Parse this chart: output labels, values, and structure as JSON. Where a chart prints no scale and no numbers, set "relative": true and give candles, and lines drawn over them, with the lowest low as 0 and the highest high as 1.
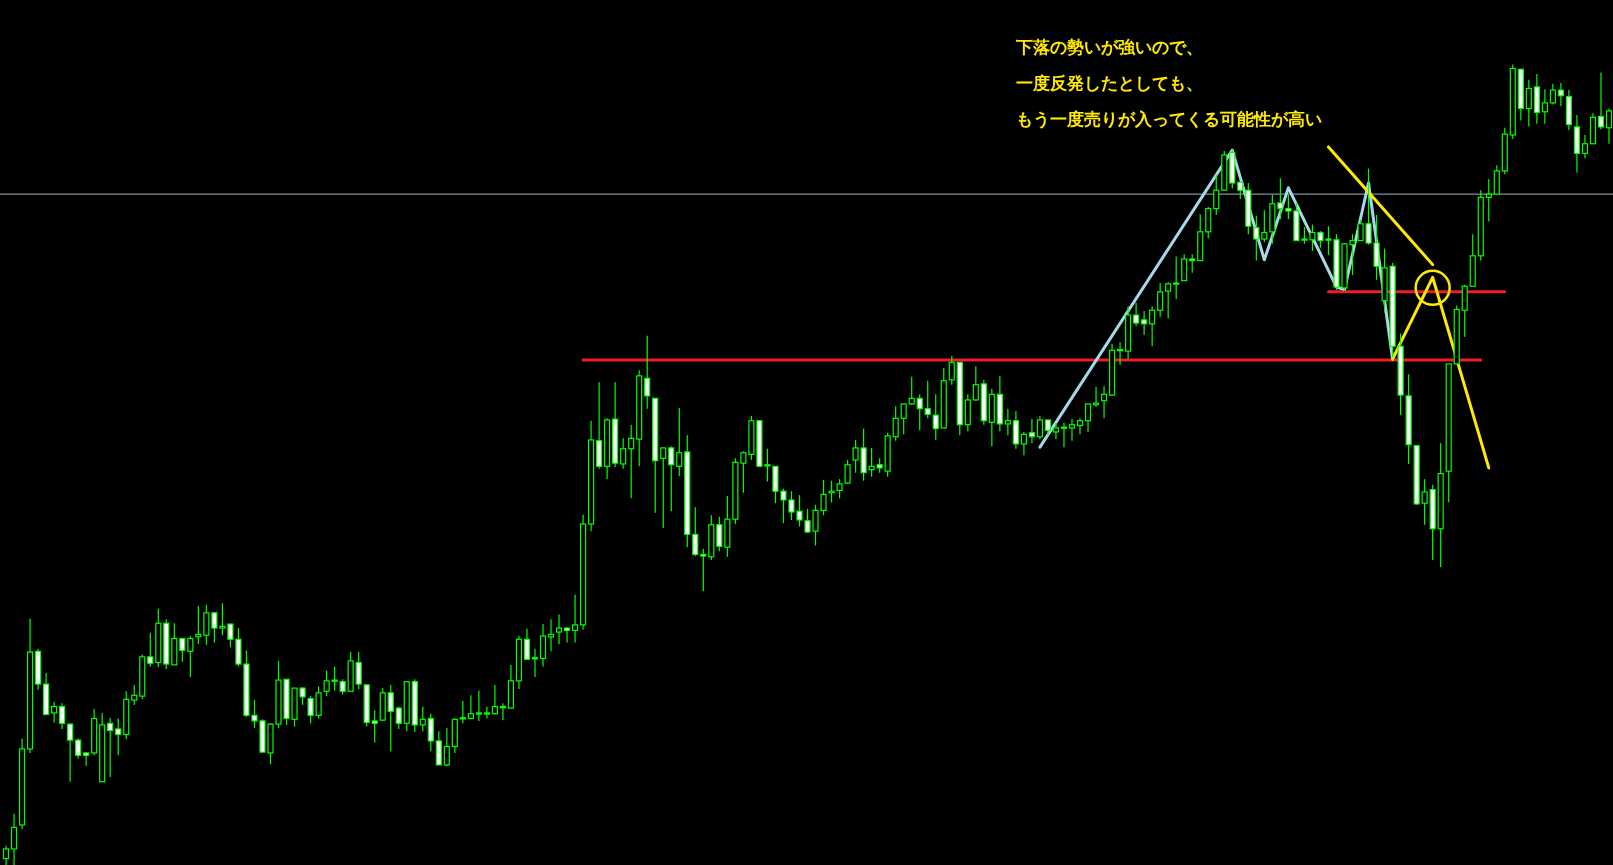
{
  "chart_data": {
    "type": "candlestick",
    "relative": true,
    "categories": [
      null,
      null,
      null,
      null,
      null,
      null,
      null,
      null,
      null,
      null,
      null,
      null,
      null,
      null,
      null,
      null,
      null,
      null,
      null,
      null,
      null,
      null,
      null,
      null,
      null,
      null,
      null,
      null,
      null,
      null,
      null,
      null,
      null,
      null,
      null,
      null,
      null,
      null,
      null,
      null,
      null,
      null,
      null,
      null,
      null,
      null,
      null,
      null,
      null,
      null,
      null,
      null,
      null,
      null,
      null,
      null,
      null,
      null,
      null,
      null,
      null,
      null,
      null,
      null,
      null,
      null,
      null,
      null,
      null,
      null,
      null,
      null,
      null,
      null,
      null,
      null,
      null,
      null,
      null,
      null,
      null,
      null,
      null,
      null,
      null,
      null,
      null,
      null,
      null,
      null,
      null,
      null,
      null,
      null,
      null,
      null,
      null,
      null,
      null,
      null,
      null,
      null,
      null,
      null,
      null,
      null,
      null,
      null,
      null,
      null,
      null,
      null,
      null,
      null,
      null,
      null,
      null,
      null,
      null,
      null,
      null,
      null,
      null,
      null,
      null,
      null,
      null,
      null,
      null,
      null,
      null,
      null,
      null,
      null,
      null,
      null,
      null,
      null,
      null,
      null,
      null,
      null,
      null,
      null,
      null,
      null,
      null,
      null,
      null,
      null,
      null,
      null,
      null,
      null,
      null,
      null,
      null,
      null,
      null,
      null,
      null,
      null,
      null,
      null,
      null,
      null,
      null,
      null,
      null,
      null,
      null,
      null,
      null,
      null,
      null,
      null,
      null,
      null,
      null,
      null,
      null,
      null,
      null,
      null,
      null,
      null,
      null,
      null,
      null,
      null,
      null,
      null,
      null,
      null,
      null,
      null,
      null,
      null,
      null,
      null,
      null
    ],
    "ohlc": [
      [
        0.008,
        0.024,
        0,
        0.02
      ],
      [
        0.02,
        0.064,
        0,
        0.047
      ],
      [
        0.05,
        0.158,
        0.045,
        0.145
      ],
      [
        0.145,
        0.308,
        0.14,
        0.266
      ],
      [
        0.267,
        0.27,
        0.219,
        0.226
      ],
      [
        0.226,
        0.24,
        0.188,
        0.188
      ],
      [
        0.19,
        0.204,
        0.178,
        0.198
      ],
      [
        0.198,
        0.202,
        0.17,
        0.177
      ],
      [
        0.176,
        0.177,
        0.104,
        0.156
      ],
      [
        0.156,
        0.158,
        0.133,
        0.137
      ],
      [
        0.14,
        0.141,
        0.124,
        0.137
      ],
      [
        0.14,
        0.195,
        0.137,
        0.183
      ],
      [
        0.104,
        0.19,
        0.104,
        0.175
      ],
      [
        0.177,
        0.184,
        0.11,
        0.168
      ],
      [
        0.17,
        0.183,
        0.137,
        0.163
      ],
      [
        0.163,
        0.217,
        0.157,
        0.207
      ],
      [
        0.206,
        0.225,
        0.2,
        0.212
      ],
      [
        0.211,
        0.263,
        0.207,
        0.26
      ],
      [
        0.26,
        0.29,
        0.248,
        0.252
      ],
      [
        0.253,
        0.32,
        0.247,
        0.302
      ],
      [
        0.302,
        0.307,
        0.245,
        0.251
      ],
      [
        0.25,
        0.302,
        0.25,
        0.283
      ],
      [
        0.283,
        0.283,
        0.254,
        0.268
      ],
      [
        0.267,
        0.286,
        0.235,
        0.283
      ],
      [
        0.285,
        0.324,
        0.276,
        0.288
      ],
      [
        0.287,
        0.325,
        0.275,
        0.315
      ],
      [
        0.315,
        0.316,
        0.278,
        0.296
      ],
      [
        0.296,
        0.327,
        0.287,
        0.298
      ],
      [
        0.301,
        0.301,
        0.272,
        0.282
      ],
      [
        0.282,
        0.296,
        0.248,
        0.251
      ],
      [
        0.251,
        0.268,
        0.185,
        0.187
      ],
      [
        0.187,
        0.206,
        0.171,
        0.18
      ],
      [
        0.18,
        0.182,
        0.141,
        0.141
      ],
      [
        0.14,
        0.177,
        0.126,
        0.176
      ],
      [
        0.176,
        0.255,
        0.171,
        0.231
      ],
      [
        0.232,
        0.232,
        0.175,
        0.183
      ],
      [
        0.182,
        0.221,
        0.173,
        0.221
      ],
      [
        0.221,
        0.222,
        0.2,
        0.21
      ],
      [
        0.208,
        0.211,
        0.177,
        0.187
      ],
      [
        0.187,
        0.223,
        0.183,
        0.215
      ],
      [
        0.217,
        0.243,
        0.211,
        0.23
      ],
      [
        0.23,
        0.248,
        0.218,
        0.231
      ],
      [
        0.229,
        0.232,
        0.213,
        0.217
      ],
      [
        0.217,
        0.266,
        0.217,
        0.255
      ],
      [
        0.253,
        0.266,
        0.22,
        0.226
      ],
      [
        0.225,
        0.225,
        0.173,
        0.178
      ],
      [
        0.18,
        0.193,
        0.153,
        0.177
      ],
      [
        0.181,
        0.221,
        0.18,
        0.215
      ],
      [
        0.215,
        0.225,
        0.142,
        0.192
      ],
      [
        0.196,
        0.198,
        0.17,
        0.177
      ],
      [
        0.177,
        0.229,
        0.167,
        0.229
      ],
      [
        0.229,
        0.232,
        0.166,
        0.175
      ],
      [
        0.175,
        0.198,
        0.167,
        0.182
      ],
      [
        0.183,
        0.189,
        0.142,
        0.155
      ],
      [
        0.155,
        0.167,
        0.125,
        0.125
      ],
      [
        0.125,
        0.171,
        0.123,
        0.148
      ],
      [
        0.148,
        0.183,
        0.14,
        0.182
      ],
      [
        0.183,
        0.205,
        0.177,
        0.184
      ],
      [
        0.183,
        0.212,
        0.182,
        0.189
      ],
      [
        0.189,
        0.218,
        0.18,
        0.19
      ],
      [
        0.189,
        0.198,
        0.183,
        0.19
      ],
      [
        0.189,
        0.225,
        0.188,
        0.198
      ],
      [
        0.197,
        0.202,
        0.181,
        0.198
      ],
      [
        0.196,
        0.25,
        0.196,
        0.23
      ],
      [
        0.23,
        0.286,
        0.22,
        0.282
      ],
      [
        0.282,
        0.295,
        0.257,
        0.257
      ],
      [
        0.258,
        0.27,
        0.235,
        0.259
      ],
      [
        0.258,
        0.301,
        0.248,
        0.286
      ],
      [
        0.285,
        0.307,
        0.267,
        0.288
      ],
      [
        0.291,
        0.313,
        0.276,
        0.296
      ],
      [
        0.296,
        0.297,
        0.278,
        0.293
      ],
      [
        0.293,
        0.338,
        0.278,
        0.3
      ],
      [
        0.3,
        0.438,
        0.294,
        0.426
      ],
      [
        0.426,
        0.555,
        0.417,
        0.531
      ],
      [
        0.53,
        0.603,
        0.495,
        0.498
      ],
      [
        0.498,
        0.558,
        0.482,
        0.556
      ],
      [
        0.557,
        0.603,
        0.497,
        0.502
      ],
      [
        0.501,
        0.533,
        0.495,
        0.52
      ],
      [
        0.52,
        0.55,
        0.458,
        0.533
      ],
      [
        0.532,
        0.618,
        0.498,
        0.611
      ],
      [
        0.608,
        0.661,
        0.57,
        0.586
      ],
      [
        0.583,
        0.583,
        0.44,
        0.505
      ],
      [
        0.508,
        0.522,
        0.421,
        0.521
      ],
      [
        0.521,
        0.523,
        0.442,
        0.5
      ],
      [
        0.498,
        0.571,
        0.486,
        0.515
      ],
      [
        0.516,
        0.537,
        0.397,
        0.413
      ],
      [
        0.413,
        0.447,
        0.386,
        0.388
      ],
      [
        0.388,
        0.395,
        0.342,
        0.386
      ],
      [
        0.385,
        0.437,
        0.381,
        0.425
      ],
      [
        0.425,
        0.435,
        0.392,
        0.398
      ],
      [
        0.397,
        0.461,
        0.385,
        0.432
      ],
      [
        0.432,
        0.508,
        0.426,
        0.503
      ],
      [
        0.502,
        0.517,
        0.465,
        0.515
      ],
      [
        0.513,
        0.561,
        0.506,
        0.555
      ],
      [
        0.555,
        0.555,
        0.498,
        0.498
      ],
      [
        0.499,
        0.52,
        0.479,
        0.5
      ],
      [
        0.498,
        0.498,
        0.452,
        0.467
      ],
      [
        0.467,
        0.47,
        0.427,
        0.456
      ],
      [
        0.456,
        0.467,
        0.431,
        0.441
      ],
      [
        0.442,
        0.462,
        0.423,
        0.431
      ],
      [
        0.43,
        0.445,
        0.415,
        0.416
      ],
      [
        0.417,
        0.45,
        0.399,
        0.443
      ],
      [
        0.443,
        0.481,
        0.437,
        0.463
      ],
      [
        0.465,
        0.48,
        0.453,
        0.467
      ],
      [
        0.468,
        0.482,
        0.458,
        0.476
      ],
      [
        0.477,
        0.506,
        0.476,
        0.5
      ],
      [
        0.506,
        0.531,
        0.49,
        0.521
      ],
      [
        0.521,
        0.545,
        0.48,
        0.49
      ],
      [
        0.494,
        0.521,
        0.485,
        0.498
      ],
      [
        0.5,
        0.508,
        0.49,
        0.496
      ],
      [
        0.492,
        0.54,
        0.485,
        0.536
      ],
      [
        0.535,
        0.573,
        0.53,
        0.558
      ],
      [
        0.558,
        0.576,
        0.538,
        0.576
      ],
      [
        0.576,
        0.61,
        0.575,
        0.583
      ],
      [
        0.583,
        0.588,
        0.543,
        0.57
      ],
      [
        0.57,
        0.605,
        0.558,
        0.563
      ],
      [
        0.562,
        0.588,
        0.531,
        0.545
      ],
      [
        0.546,
        0.621,
        0.546,
        0.605
      ],
      [
        0.606,
        0.636,
        0.6,
        0.628
      ],
      [
        0.628,
        0.628,
        0.537,
        0.55
      ],
      [
        0.55,
        0.588,
        0.542,
        0.581
      ],
      [
        0.581,
        0.623,
        0.58,
        0.6
      ],
      [
        0.601,
        0.606,
        0.55,
        0.555
      ],
      [
        0.553,
        0.595,
        0.523,
        0.588
      ],
      [
        0.588,
        0.611,
        0.542,
        0.551
      ],
      [
        0.551,
        0.57,
        0.537,
        0.555
      ],
      [
        0.555,
        0.567,
        0.52,
        0.526
      ],
      [
        0.526,
        0.541,
        0.512,
        0.538
      ],
      [
        0.54,
        0.557,
        0.527,
        0.535
      ],
      [
        0.535,
        0.561,
        0.532,
        0.556
      ],
      [
        0.556,
        0.556,
        0.537,
        0.543
      ],
      [
        0.541,
        0.552,
        0.532,
        0.546
      ],
      [
        0.546,
        0.552,
        0.522,
        0.547
      ],
      [
        0.546,
        0.557,
        0.53,
        0.55
      ],
      [
        0.549,
        0.558,
        0.538,
        0.555
      ],
      [
        0.555,
        0.576,
        0.541,
        0.576
      ],
      [
        0.575,
        0.597,
        0.572,
        0.577
      ],
      [
        0.58,
        0.598,
        0.558,
        0.588
      ],
      [
        0.587,
        0.651,
        0.586,
        0.643
      ],
      [
        0.643,
        0.653,
        0.625,
        0.644
      ],
      [
        0.642,
        0.698,
        0.632,
        0.687
      ],
      [
        0.687,
        0.702,
        0.673,
        0.677
      ],
      [
        0.681,
        0.692,
        0.662,
        0.676
      ],
      [
        0.676,
        0.698,
        0.648,
        0.693
      ],
      [
        0.693,
        0.727,
        0.685,
        0.716
      ],
      [
        0.717,
        0.728,
        0.683,
        0.726
      ],
      [
        0.726,
        0.76,
        0.707,
        0.727
      ],
      [
        0.73,
        0.763,
        0.73,
        0.757
      ],
      [
        0.757,
        0.763,
        0.74,
        0.755
      ],
      [
        0.755,
        0.813,
        0.755,
        0.791
      ],
      [
        0.791,
        0.822,
        0.783,
        0.82
      ],
      [
        0.82,
        0.862,
        0.812,
        0.843
      ],
      [
        0.843,
        0.892,
        0.843,
        0.887
      ],
      [
        0.89,
        0.893,
        0.845,
        0.852
      ],
      [
        0.853,
        0.853,
        0.832,
        0.843
      ],
      [
        0.843,
        0.852,
        0.788,
        0.798
      ],
      [
        0.796,
        0.811,
        0.755,
        0.782
      ],
      [
        0.782,
        0.818,
        0.778,
        0.79
      ],
      [
        0.791,
        0.837,
        0.776,
        0.826
      ],
      [
        0.827,
        0.858,
        0.807,
        0.82
      ],
      [
        0.82,
        0.837,
        0.807,
        0.817
      ],
      [
        0.817,
        0.827,
        0.78,
        0.78
      ],
      [
        0.781,
        0.797,
        0.776,
        0.782
      ],
      [
        0.781,
        0.8,
        0.767,
        0.79
      ],
      [
        0.79,
        0.792,
        0.771,
        0.78
      ],
      [
        0.781,
        0.798,
        0.762,
        0.782
      ],
      [
        0.781,
        0.788,
        0.718,
        0.722
      ],
      [
        0.721,
        0.777,
        0.717,
        0.776
      ],
      [
        0.775,
        0.788,
        0.737,
        0.78
      ],
      [
        0.78,
        0.806,
        0.78,
        0.801
      ],
      [
        0.801,
        0.87,
        0.775,
        0.777
      ],
      [
        0.777,
        0.812,
        0.731,
        0.748
      ],
      [
        0.705,
        0.77,
        0.69,
        0.746
      ],
      [
        0.748,
        0.752,
        0.634,
        0.648
      ],
      [
        0.648,
        0.664,
        0.562,
        0.587
      ],
      [
        0.586,
        0.613,
        0.501,
        0.525
      ],
      [
        0.524,
        0.524,
        0.45,
        0.451
      ],
      [
        0.452,
        0.482,
        0.425,
        0.466
      ],
      [
        0.469,
        0.475,
        0.381,
        0.42
      ],
      [
        0.42,
        0.527,
        0.372,
        0.489
      ],
      [
        0.492,
        0.626,
        0.453,
        0.626
      ],
      [
        0.626,
        0.699,
        0.626,
        0.694
      ],
      [
        0.693,
        0.725,
        0.66,
        0.723
      ],
      [
        0.723,
        0.788,
        0.723,
        0.761
      ],
      [
        0.761,
        0.843,
        0.755,
        0.834
      ],
      [
        0.834,
        0.857,
        0.804,
        0.838
      ],
      [
        0.838,
        0.874,
        0.838,
        0.867
      ],
      [
        0.867,
        0.921,
        0.863,
        0.913
      ],
      [
        0.912,
        1.0,
        0.907,
        0.995
      ],
      [
        0.994,
        0.995,
        0.93,
        0.945
      ],
      [
        0.945,
        0.981,
        0.923,
        0.97
      ],
      [
        0.972,
        0.988,
        0.926,
        0.94
      ],
      [
        0.941,
        0.969,
        0.926,
        0.952
      ],
      [
        0.952,
        0.976,
        0.95,
        0.968
      ],
      [
        0.968,
        0.977,
        0.948,
        0.961
      ],
      [
        0.96,
        0.968,
        0.918,
        0.925
      ],
      [
        0.922,
        0.937,
        0.865,
        0.889
      ],
      [
        0.889,
        0.912,
        0.883,
        0.901
      ],
      [
        0.901,
        0.939,
        0.901,
        0.934
      ],
      [
        0.935,
        0.99,
        0.919,
        0.922
      ],
      [
        0.921,
        0.945,
        0.901,
        0.942
      ]
    ],
    "ref_lines": [
      {
        "axis": "y",
        "value": 0.838,
        "color": "#7f8c99"
      }
    ],
    "series": [
      {
        "type": "line",
        "color": "#ee1c25",
        "values": [
          null,
          null,
          null,
          null,
          null,
          null,
          null,
          null,
          null,
          null,
          null,
          null,
          null,
          null,
          null,
          null,
          null,
          null,
          null,
          null,
          null,
          null,
          null,
          null,
          null,
          null,
          null,
          null,
          null,
          null,
          null,
          null,
          null,
          null,
          null,
          null,
          null,
          null,
          null,
          null,
          null,
          null,
          null,
          null,
          null,
          null,
          null,
          null,
          null,
          null,
          null,
          null,
          null,
          null,
          null,
          null,
          null,
          null,
          null,
          null,
          null,
          null,
          null,
          null,
          null,
          null,
          null,
          null,
          null,
          null,
          null,
          null,
          0.631,
          null,
          null,
          null,
          null,
          null,
          null,
          null,
          null,
          null,
          null,
          null,
          null,
          null,
          null,
          null,
          null,
          null,
          null,
          null,
          null,
          null,
          null,
          null,
          null,
          null,
          null,
          null,
          null,
          null,
          null,
          null,
          null,
          null,
          null,
          null,
          null,
          null,
          null,
          null,
          null,
          null,
          null,
          null,
          null,
          null,
          null,
          null,
          null,
          null,
          null,
          null,
          null,
          null,
          null,
          null,
          null,
          null,
          null,
          null,
          null,
          null,
          null,
          null,
          null,
          null,
          null,
          null,
          null,
          null,
          null,
          null,
          null,
          null,
          null,
          null,
          null,
          null,
          null,
          null,
          null,
          null,
          null,
          null,
          null,
          null,
          null,
          null,
          null,
          null,
          null,
          null,
          null,
          null,
          null,
          null,
          null,
          null,
          null,
          null,
          null,
          null,
          null,
          null,
          null,
          null,
          null,
          null,
          null,
          null,
          null,
          null,
          0.631,
          null,
          null,
          null,
          null,
          null,
          null,
          null,
          null,
          null,
          null,
          null,
          null,
          null,
          null,
          null,
          null
        ]
      },
      {
        "type": "line",
        "color": "#ee1c25",
        "values": [
          null,
          null,
          null,
          null,
          null,
          null,
          null,
          null,
          null,
          null,
          null,
          null,
          null,
          null,
          null,
          null,
          null,
          null,
          null,
          null,
          null,
          null,
          null,
          null,
          null,
          null,
          null,
          null,
          null,
          null,
          null,
          null,
          null,
          null,
          null,
          null,
          null,
          null,
          null,
          null,
          null,
          null,
          null,
          null,
          null,
          null,
          null,
          null,
          null,
          null,
          null,
          null,
          null,
          null,
          null,
          null,
          null,
          null,
          null,
          null,
          null,
          null,
          null,
          null,
          null,
          null,
          null,
          null,
          null,
          null,
          null,
          null,
          null,
          null,
          null,
          null,
          null,
          null,
          null,
          null,
          null,
          null,
          null,
          null,
          null,
          null,
          null,
          null,
          null,
          null,
          null,
          null,
          null,
          null,
          null,
          null,
          null,
          null,
          null,
          null,
          null,
          null,
          null,
          null,
          null,
          null,
          null,
          null,
          null,
          null,
          null,
          null,
          null,
          null,
          null,
          null,
          null,
          null,
          null,
          null,
          null,
          null,
          null,
          null,
          null,
          null,
          null,
          null,
          null,
          null,
          null,
          null,
          null,
          null,
          null,
          null,
          null,
          null,
          null,
          null,
          null,
          null,
          null,
          null,
          null,
          null,
          null,
          null,
          null,
          null,
          null,
          null,
          null,
          null,
          null,
          null,
          null,
          null,
          null,
          null,
          null,
          null,
          null,
          null,
          null,
          0.716,
          null,
          null,
          null,
          null,
          null,
          null,
          null,
          null,
          null,
          null,
          null,
          null,
          null,
          null,
          null,
          null,
          null,
          null,
          null,
          null,
          null,
          0.716,
          null,
          null,
          null,
          null,
          null,
          null,
          null,
          null,
          null,
          null,
          null,
          null,
          null
        ]
      },
      {
        "type": "line",
        "color": "#a6d8ea",
        "values": [
          null,
          null,
          null,
          null,
          null,
          null,
          null,
          null,
          null,
          null,
          null,
          null,
          null,
          null,
          null,
          null,
          null,
          null,
          null,
          null,
          null,
          null,
          null,
          null,
          null,
          null,
          null,
          null,
          null,
          null,
          null,
          null,
          null,
          null,
          null,
          null,
          null,
          null,
          null,
          null,
          null,
          null,
          null,
          null,
          null,
          null,
          null,
          null,
          null,
          null,
          null,
          null,
          null,
          null,
          null,
          null,
          null,
          null,
          null,
          null,
          null,
          null,
          null,
          null,
          null,
          null,
          null,
          null,
          null,
          null,
          null,
          null,
          null,
          null,
          null,
          null,
          null,
          null,
          null,
          null,
          null,
          null,
          null,
          null,
          null,
          null,
          null,
          null,
          null,
          null,
          null,
          null,
          null,
          null,
          null,
          null,
          null,
          null,
          null,
          null,
          null,
          null,
          null,
          null,
          null,
          null,
          null,
          null,
          null,
          null,
          null,
          null,
          null,
          null,
          null,
          null,
          null,
          null,
          null,
          null,
          null,
          null,
          null,
          null,
          null,
          null,
          null,
          null,
          null,
          0.522,
          null,
          null,
          null,
          null,
          null,
          null,
          null,
          null,
          null,
          null,
          null,
          null,
          null,
          null,
          null,
          null,
          null,
          null,
          null,
          null,
          null,
          null,
          null,
          0.893,
          null,
          null,
          null,
          0.756,
          null,
          null,
          0.846,
          null,
          null,
          null,
          null,
          null,
          0.722,
          0.719,
          null,
          null,
          0.852,
          null,
          null,
          0.632,
          null,
          null,
          null,
          null,
          null,
          null,
          null,
          null,
          null,
          null,
          null,
          null,
          null,
          null,
          null,
          null,
          null,
          null,
          null,
          null,
          null,
          null,
          null,
          null,
          null,
          null,
          null
        ]
      },
      {
        "type": "line",
        "color": "#ffea00",
        "values": [
          null,
          null,
          null,
          null,
          null,
          null,
          null,
          null,
          null,
          null,
          null,
          null,
          null,
          null,
          null,
          null,
          null,
          null,
          null,
          null,
          null,
          null,
          null,
          null,
          null,
          null,
          null,
          null,
          null,
          null,
          null,
          null,
          null,
          null,
          null,
          null,
          null,
          null,
          null,
          null,
          null,
          null,
          null,
          null,
          null,
          null,
          null,
          null,
          null,
          null,
          null,
          null,
          null,
          null,
          null,
          null,
          null,
          null,
          null,
          null,
          null,
          null,
          null,
          null,
          null,
          null,
          null,
          null,
          null,
          null,
          null,
          null,
          null,
          null,
          null,
          null,
          null,
          null,
          null,
          null,
          null,
          null,
          null,
          null,
          null,
          null,
          null,
          null,
          null,
          null,
          null,
          null,
          null,
          null,
          null,
          null,
          null,
          null,
          null,
          null,
          null,
          null,
          null,
          null,
          null,
          null,
          null,
          null,
          null,
          null,
          null,
          null,
          null,
          null,
          null,
          null,
          null,
          null,
          null,
          null,
          null,
          null,
          null,
          null,
          null,
          null,
          null,
          null,
          null,
          null,
          null,
          null,
          null,
          null,
          null,
          null,
          null,
          null,
          null,
          null,
          null,
          null,
          null,
          null,
          null,
          null,
          null,
          null,
          null,
          null,
          null,
          null,
          null,
          null,
          null,
          null,
          null,
          null,
          null,
          null,
          null,
          null,
          null,
          null,
          null,
          0.897,
          null,
          null,
          null,
          null,
          null,
          null,
          null,
          null,
          null,
          null,
          null,
          null,
          0.75,
          null,
          null,
          null,
          null,
          null,
          null,
          null,
          null,
          null,
          null,
          null,
          null,
          null,
          null,
          null,
          null,
          null,
          null,
          null,
          null,
          null,
          null
        ]
      },
      {
        "type": "line",
        "color": "#ffea00",
        "values": [
          null,
          null,
          null,
          null,
          null,
          null,
          null,
          null,
          null,
          null,
          null,
          null,
          null,
          null,
          null,
          null,
          null,
          null,
          null,
          null,
          null,
          null,
          null,
          null,
          null,
          null,
          null,
          null,
          null,
          null,
          null,
          null,
          null,
          null,
          null,
          null,
          null,
          null,
          null,
          null,
          null,
          null,
          null,
          null,
          null,
          null,
          null,
          null,
          null,
          null,
          null,
          null,
          null,
          null,
          null,
          null,
          null,
          null,
          null,
          null,
          null,
          null,
          null,
          null,
          null,
          null,
          null,
          null,
          null,
          null,
          null,
          null,
          null,
          null,
          null,
          null,
          null,
          null,
          null,
          null,
          null,
          null,
          null,
          null,
          null,
          null,
          null,
          null,
          null,
          null,
          null,
          null,
          null,
          null,
          null,
          null,
          null,
          null,
          null,
          null,
          null,
          null,
          null,
          null,
          null,
          null,
          null,
          null,
          null,
          null,
          null,
          null,
          null,
          null,
          null,
          null,
          null,
          null,
          null,
          null,
          null,
          null,
          null,
          null,
          null,
          null,
          null,
          null,
          null,
          null,
          null,
          null,
          null,
          null,
          null,
          null,
          null,
          null,
          null,
          null,
          null,
          null,
          null,
          null,
          null,
          null,
          null,
          null,
          null,
          null,
          null,
          null,
          null,
          null,
          null,
          null,
          null,
          null,
          null,
          null,
          null,
          null,
          null,
          null,
          null,
          null,
          null,
          null,
          null,
          null,
          null,
          null,
          null,
          0.632,
          null,
          null,
          null,
          null,
          0.734,
          null,
          null,
          null,
          null,
          null,
          null,
          0.496,
          null,
          null,
          null,
          null,
          null,
          null,
          null,
          null,
          null,
          null,
          null,
          null,
          null,
          null,
          null
        ]
      },
      {
        "type": "scatter",
        "marker": "circle",
        "color": "#ffea00",
        "values": [
          null,
          null,
          null,
          null,
          null,
          null,
          null,
          null,
          null,
          null,
          null,
          null,
          null,
          null,
          null,
          null,
          null,
          null,
          null,
          null,
          null,
          null,
          null,
          null,
          null,
          null,
          null,
          null,
          null,
          null,
          null,
          null,
          null,
          null,
          null,
          null,
          null,
          null,
          null,
          null,
          null,
          null,
          null,
          null,
          null,
          null,
          null,
          null,
          null,
          null,
          null,
          null,
          null,
          null,
          null,
          null,
          null,
          null,
          null,
          null,
          null,
          null,
          null,
          null,
          null,
          null,
          null,
          null,
          null,
          null,
          null,
          null,
          null,
          null,
          null,
          null,
          null,
          null,
          null,
          null,
          null,
          null,
          null,
          null,
          null,
          null,
          null,
          null,
          null,
          null,
          null,
          null,
          null,
          null,
          null,
          null,
          null,
          null,
          null,
          null,
          null,
          null,
          null,
          null,
          null,
          null,
          null,
          null,
          null,
          null,
          null,
          null,
          null,
          null,
          null,
          null,
          null,
          null,
          null,
          null,
          null,
          null,
          null,
          null,
          null,
          null,
          null,
          null,
          null,
          null,
          null,
          null,
          null,
          null,
          null,
          null,
          null,
          null,
          null,
          null,
          null,
          null,
          null,
          null,
          null,
          null,
          null,
          null,
          null,
          null,
          null,
          null,
          null,
          null,
          null,
          null,
          null,
          null,
          null,
          null,
          null,
          null,
          null,
          null,
          null,
          null,
          null,
          null,
          null,
          null,
          null,
          null,
          null,
          null,
          null,
          null,
          null,
          null,
          0.721,
          null,
          null,
          null,
          null,
          null,
          null,
          null,
          null,
          null,
          null,
          null,
          null,
          null,
          null,
          null,
          null,
          null,
          null,
          null,
          null,
          null,
          null
        ]
      }
    ],
    "annotations": [
      "下落の勢いが強いので、",
      "一度反発したとしても、",
      "もう一度売りが入ってくる可能性が高い"
    ]
  }
}
